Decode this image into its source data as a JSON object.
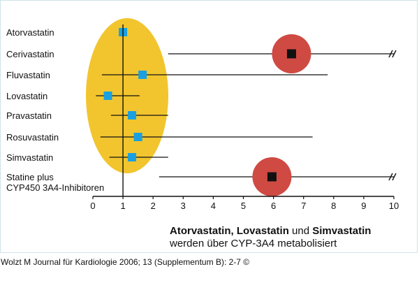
{
  "chart_data": {
    "type": "scatter",
    "title": "",
    "xlabel": "",
    "ylabel": "",
    "xlim": [
      0,
      10
    ],
    "x_ticks": [
      0,
      1,
      2,
      3,
      4,
      5,
      6,
      7,
      8,
      9,
      10
    ],
    "tick_labels": [
      "0",
      "1",
      "2",
      "3",
      "4",
      "5",
      "6",
      "7",
      "8",
      "9",
      "10"
    ],
    "categories": [
      [
        "Atorvastatin"
      ],
      [
        "Cerivastatin"
      ],
      [
        "Fluvastatin"
      ],
      [
        "Lovastatin"
      ],
      [
        "Pravastatin"
      ],
      [
        "Rosuvastatin"
      ],
      [
        "Simvastatin"
      ],
      [
        "Statine plus",
        "CYP450 3A4-Inhibitoren"
      ]
    ],
    "points": [
      {
        "value": 1.0,
        "low": null,
        "high": null,
        "clipped": false,
        "highlighted": false
      },
      {
        "value": 6.6,
        "low": 2.5,
        "high": 10,
        "clipped": true,
        "highlighted": true
      },
      {
        "value": 1.65,
        "low": 0.3,
        "high": 7.8,
        "clipped": false,
        "highlighted": false
      },
      {
        "value": 0.5,
        "low": 0.1,
        "high": 1.55,
        "clipped": false,
        "highlighted": false
      },
      {
        "value": 1.3,
        "low": 0.6,
        "high": 2.5,
        "clipped": false,
        "highlighted": false
      },
      {
        "value": 1.5,
        "low": 0.25,
        "high": 7.3,
        "clipped": false,
        "highlighted": false
      },
      {
        "value": 1.3,
        "low": 0.55,
        "high": 2.5,
        "clipped": false,
        "highlighted": false
      },
      {
        "value": 5.95,
        "low": 2.2,
        "high": 10,
        "clipped": true,
        "highlighted": true
      }
    ],
    "grid": false,
    "legend": "none"
  },
  "colors": {
    "ellipse": "#f2c52e",
    "marker": "#1aa0e0",
    "highlight_circle": "#cf4a43",
    "highlight_marker": "#111111",
    "axis": "#111111"
  },
  "caption": {
    "bold_1": "Atorvastatin,",
    "bold_2": "Lovastatin",
    "joiner": "und",
    "bold_3": "Simvastatin",
    "line2": "werden über CYP-3A4 metabolisiert"
  },
  "credit": "Wolzt M Journal für Kardiologie 2006; 13 (Supplementum B): 2-7 ©"
}
